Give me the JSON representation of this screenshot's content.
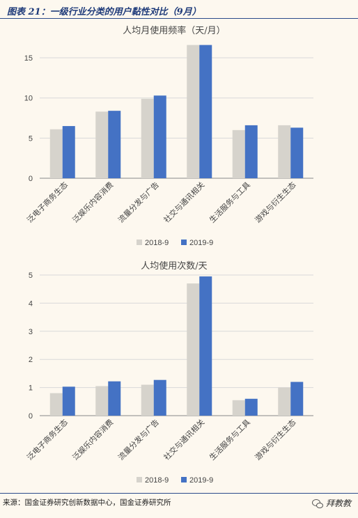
{
  "figure_title": "图表 21：一级行业分类的用户黏性对比（9月）",
  "source": "来源：国金证券研究创新数据中心，国金证券研究所",
  "watermark": "拜教教",
  "colors": {
    "s2018": "#d6d3cc",
    "s2019": "#4472c4",
    "axis": "#888888",
    "grid": "#d9d9d9"
  },
  "chart_data": [
    {
      "type": "bar",
      "title": "人均月使用频率（天/月）",
      "categories": [
        "泛电子商务生态",
        "泛娱乐内容消费",
        "流量分发与广告",
        "社交与通讯相关",
        "生活服务与工具",
        "游戏与衍生生态"
      ],
      "series": [
        {
          "name": "2018-9",
          "values": [
            6.1,
            8.3,
            9.9,
            16.6,
            6.0,
            6.6
          ]
        },
        {
          "name": "2019-9",
          "values": [
            6.5,
            8.4,
            10.3,
            16.6,
            6.6,
            6.3
          ]
        }
      ],
      "ylim": [
        0,
        17
      ],
      "yticks": [
        "0",
        "5",
        "10",
        "15"
      ],
      "ytick_values": [
        0,
        5,
        10,
        15
      ],
      "legend": "bottom"
    },
    {
      "type": "bar",
      "title": "人均使用次数/天",
      "categories": [
        "泛电子商务生态",
        "泛娱乐内容消费",
        "流量分发与广告",
        "社交与通讯相关",
        "生活服务与工具",
        "游戏与衍生生态"
      ],
      "series": [
        {
          "name": "2018-9",
          "values": [
            0.8,
            1.05,
            1.1,
            4.7,
            0.55,
            1.0
          ]
        },
        {
          "name": "2019-9",
          "values": [
            1.03,
            1.22,
            1.27,
            4.95,
            0.6,
            1.2
          ]
        }
      ],
      "ylim": [
        0,
        5
      ],
      "yticks": [
        "0",
        "1",
        "2",
        "3",
        "4",
        "5"
      ],
      "ytick_values": [
        0,
        1,
        2,
        3,
        4,
        5
      ],
      "legend": "bottom"
    }
  ]
}
